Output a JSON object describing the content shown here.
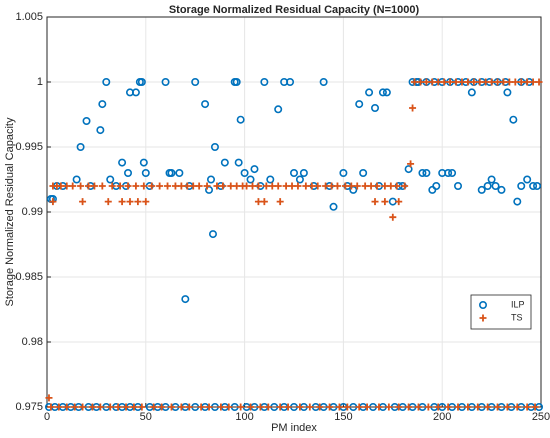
{
  "chart_data": {
    "type": "scatter",
    "title": "Storage Normalized Residual Capacity (N=1000)",
    "xlabel": "PM index",
    "ylabel": "Storage Normalized Residual Capacity",
    "xlim": [
      0,
      250
    ],
    "xticks": [
      0,
      50,
      100,
      150,
      200,
      250
    ],
    "ylim": [
      0.975,
      1.005
    ],
    "yticks": [
      0.975,
      0.98,
      0.985,
      0.99,
      0.995,
      1,
      1.005
    ],
    "grid": true,
    "legend": "east",
    "series": [
      {
        "name": "ILP",
        "color": "#0072bd",
        "marker": "circle",
        "x": [
          1,
          4,
          8,
          12,
          16,
          21,
          25,
          30,
          35,
          38,
          42,
          46,
          52,
          56,
          60,
          65,
          70,
          75,
          80,
          85,
          90,
          95,
          101,
          105,
          110,
          115,
          120,
          125,
          130,
          136,
          140,
          145,
          150,
          155,
          160,
          165,
          170,
          176,
          180,
          185,
          190,
          196,
          200,
          205,
          210,
          215,
          220,
          225,
          230,
          235,
          240,
          245,
          249,
          2,
          3,
          5,
          8,
          15,
          17,
          20,
          22,
          27,
          28,
          30,
          32,
          35,
          38,
          40,
          41,
          42,
          45,
          47,
          48,
          49,
          50,
          52,
          60,
          62,
          63,
          67,
          70,
          72,
          75,
          80,
          82,
          83,
          84,
          85,
          88,
          90,
          95,
          96,
          97,
          98,
          100,
          103,
          105,
          108,
          110,
          113,
          117,
          120,
          123,
          125,
          128,
          130,
          135,
          140,
          143,
          145,
          150,
          152,
          155,
          158,
          160,
          163,
          166,
          168,
          170,
          172,
          175,
          178,
          180,
          183,
          185,
          187,
          190,
          192,
          195,
          197,
          200,
          203,
          205,
          208,
          212,
          215,
          220,
          223,
          225,
          227,
          230,
          233,
          236,
          238,
          240,
          243,
          246,
          248,
          188,
          192,
          196,
          200,
          204,
          208,
          216,
          220,
          224,
          228,
          232,
          240,
          244
        ],
        "y": [
          0.975,
          0.975,
          0.975,
          0.975,
          0.975,
          0.975,
          0.975,
          0.975,
          0.975,
          0.975,
          0.975,
          0.975,
          0.975,
          0.975,
          0.975,
          0.975,
          0.975,
          0.975,
          0.975,
          0.975,
          0.975,
          0.975,
          0.975,
          0.975,
          0.975,
          0.975,
          0.975,
          0.975,
          0.975,
          0.975,
          0.975,
          0.975,
          0.975,
          0.975,
          0.975,
          0.975,
          0.975,
          0.975,
          0.975,
          0.975,
          0.975,
          0.975,
          0.975,
          0.975,
          0.975,
          0.975,
          0.975,
          0.975,
          0.975,
          0.975,
          0.975,
          0.975,
          0.975,
          0.991,
          0.991,
          0.992,
          0.992,
          0.9925,
          0.995,
          0.997,
          0.992,
          0.9963,
          0.9983,
          1,
          0.9925,
          0.992,
          0.9938,
          0.992,
          0.993,
          0.9992,
          0.9992,
          1,
          1,
          0.9938,
          0.993,
          0.992,
          1,
          0.993,
          0.993,
          0.993,
          0.9833,
          0.992,
          1,
          0.9983,
          0.9917,
          0.9925,
          0.9883,
          0.995,
          0.992,
          0.9938,
          1,
          1,
          0.9938,
          0.9971,
          0.993,
          0.9925,
          0.9933,
          0.992,
          1,
          0.9925,
          0.9979,
          1,
          1,
          0.993,
          0.9925,
          0.993,
          0.992,
          1,
          0.992,
          0.9904,
          0.993,
          0.992,
          0.9917,
          0.9983,
          0.993,
          0.9992,
          0.998,
          0.992,
          0.9992,
          0.9992,
          0.9908,
          0.992,
          0.992,
          0.9933,
          1,
          1,
          0.993,
          0.993,
          0.9917,
          0.992,
          0.993,
          0.993,
          0.993,
          0.992,
          1,
          0.9992,
          0.9917,
          0.992,
          0.9925,
          0.992,
          0.9917,
          0.9992,
          0.9971,
          0.9908,
          0.992,
          0.9925,
          0.992,
          0.992,
          1,
          1,
          1,
          1,
          1,
          1,
          1,
          1,
          1,
          1,
          1,
          1,
          1
        ]
      },
      {
        "name": "TS",
        "color": "#d95319",
        "marker": "plus",
        "x": [
          2,
          6,
          10,
          14,
          18,
          23,
          27,
          32,
          36,
          40,
          44,
          48,
          54,
          58,
          63,
          68,
          72,
          78,
          82,
          88,
          92,
          98,
          103,
          108,
          112,
          118,
          122,
          128,
          133,
          138,
          143,
          148,
          152,
          158,
          162,
          168,
          173,
          178,
          183,
          188,
          193,
          198,
          203,
          208,
          213,
          218,
          223,
          228,
          233,
          238,
          243,
          247,
          3,
          5,
          7,
          10,
          13,
          17,
          21,
          24,
          28,
          33,
          37,
          41,
          45,
          49,
          53,
          57,
          61,
          65,
          68,
          71,
          74,
          77,
          81,
          86,
          89,
          93,
          96,
          99,
          101,
          104,
          107,
          111,
          114,
          117,
          121,
          124,
          127,
          131,
          134,
          137,
          141,
          144,
          147,
          151,
          154,
          157,
          161,
          164,
          167,
          171,
          174,
          177,
          181,
          3,
          18,
          31,
          38,
          42,
          46,
          50,
          107,
          110,
          118,
          166,
          171,
          178,
          186,
          189,
          192,
          195,
          198,
          201,
          204,
          207,
          210,
          213,
          216,
          219,
          222,
          225,
          228,
          231,
          234,
          237,
          240,
          243,
          246,
          249,
          1,
          185,
          184,
          175
        ],
        "y": [
          0.975,
          0.975,
          0.975,
          0.975,
          0.975,
          0.975,
          0.975,
          0.975,
          0.975,
          0.975,
          0.975,
          0.975,
          0.975,
          0.975,
          0.975,
          0.975,
          0.975,
          0.975,
          0.975,
          0.975,
          0.975,
          0.975,
          0.975,
          0.975,
          0.975,
          0.975,
          0.975,
          0.975,
          0.975,
          0.975,
          0.975,
          0.975,
          0.975,
          0.975,
          0.975,
          0.975,
          0.975,
          0.975,
          0.975,
          0.975,
          0.975,
          0.975,
          0.975,
          0.975,
          0.975,
          0.975,
          0.975,
          0.975,
          0.975,
          0.975,
          0.975,
          0.975,
          0.992,
          0.992,
          0.992,
          0.992,
          0.992,
          0.992,
          0.992,
          0.992,
          0.992,
          0.992,
          0.992,
          0.992,
          0.992,
          0.992,
          0.992,
          0.992,
          0.992,
          0.992,
          0.992,
          0.992,
          0.992,
          0.992,
          0.992,
          0.992,
          0.992,
          0.992,
          0.992,
          0.992,
          0.992,
          0.992,
          0.992,
          0.992,
          0.992,
          0.992,
          0.992,
          0.992,
          0.992,
          0.992,
          0.992,
          0.992,
          0.992,
          0.992,
          0.992,
          0.992,
          0.992,
          0.992,
          0.992,
          0.992,
          0.992,
          0.992,
          0.992,
          0.992,
          0.992,
          0.9908,
          0.9908,
          0.9908,
          0.9908,
          0.9908,
          0.9908,
          0.9908,
          0.9908,
          0.9908,
          0.9908,
          0.9908,
          0.9908,
          0.9908,
          1,
          1,
          1,
          1,
          1,
          1,
          1,
          1,
          1,
          1,
          1,
          1,
          1,
          1,
          1,
          1,
          1,
          1,
          1,
          1,
          1,
          1,
          0.9757,
          0.998,
          0.9937,
          0.9896
        ]
      }
    ]
  }
}
